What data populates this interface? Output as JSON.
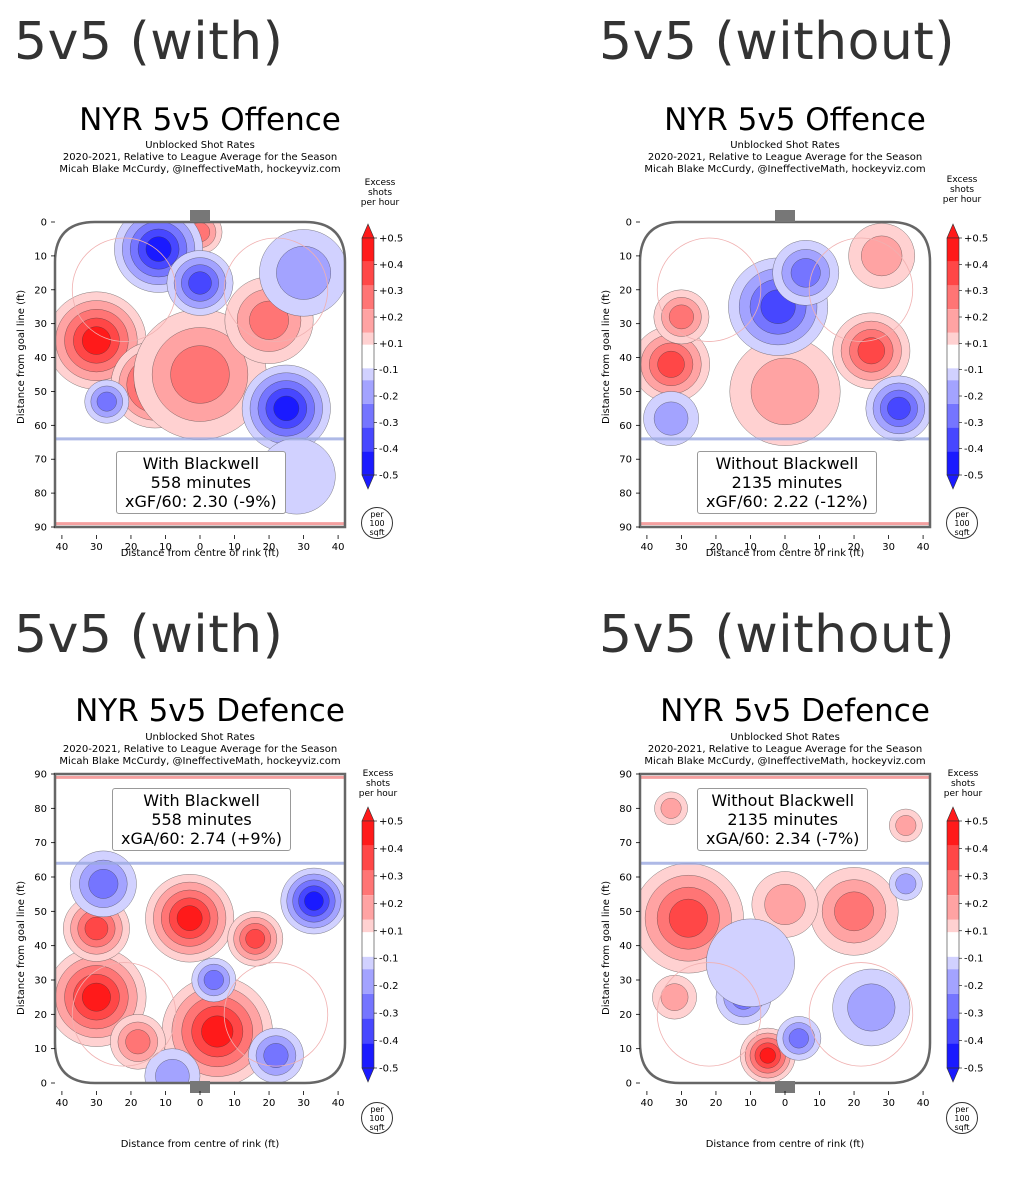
{
  "panels": [
    {
      "heading": "5v5 (with)",
      "title": "NYR 5v5 Offence",
      "subtitle_lines": [
        "Unblocked Shot Rates",
        "2020-2021, Relative to League Average for the Season",
        "Micah Blake McCurdy, @IneffectiveMath, hockeyviz.com"
      ],
      "info": {
        "line1": "With Blackwell",
        "line2": "558 minutes",
        "line3": "xGF/60: 2.30 (-9%)"
      }
    },
    {
      "heading": "5v5 (without)",
      "title": "NYR 5v5 Offence",
      "subtitle_lines": [
        "Unblocked Shot Rates",
        "2020-2021, Relative to League Average for the Season",
        "Micah Blake McCurdy, @IneffectiveMath, hockeyviz.com"
      ],
      "info": {
        "line1": "Without Blackwell",
        "line2": "2135 minutes",
        "line3": "xGF/60: 2.22 (-12%)"
      }
    },
    {
      "heading": "5v5 (with)",
      "title": "NYR 5v5 Defence",
      "subtitle_lines": [
        "Unblocked Shot Rates",
        "2020-2021, Relative to League Average for the Season",
        "Micah Blake McCurdy, @IneffectiveMath, hockeyviz.com"
      ],
      "info": {
        "line1": "With Blackwell",
        "line2": "558 minutes",
        "line3": "xGA/60: 2.74 (+9%)"
      }
    },
    {
      "heading": "5v5 (without)",
      "title": "NYR 5v5 Defence",
      "subtitle_lines": [
        "Unblocked Shot Rates",
        "2020-2021, Relative to League Average for the Season",
        "Micah Blake McCurdy, @IneffectiveMath, hockeyviz.com"
      ],
      "info": {
        "line1": "Without Blackwell",
        "line2": "2135 minutes",
        "line3": "xGA/60: 2.34 (-7%)"
      }
    }
  ],
  "axis": {
    "ylabel": "Distance from goal line (ft)",
    "xlabel": "Distance from centre of rink (ft)",
    "y_ticks_offence": [
      "0",
      "10",
      "20",
      "30",
      "40",
      "50",
      "60",
      "70",
      "80",
      "90"
    ],
    "y_ticks_defence": [
      "90",
      "80",
      "70",
      "60",
      "50",
      "40",
      "30",
      "20",
      "10",
      "0"
    ],
    "x_ticks": [
      "40",
      "30",
      "20",
      "10",
      "0",
      "10",
      "20",
      "30",
      "40"
    ]
  },
  "colorbar": {
    "title_lines": [
      "Excess",
      "shots",
      "per hour"
    ],
    "ticks": [
      "+0.5",
      "+0.4",
      "+0.3",
      "+0.2",
      "+0.1",
      "-0.1",
      "-0.2",
      "-0.3",
      "-0.4",
      "-0.5"
    ],
    "unit_lines": [
      "per",
      "100",
      "sqft"
    ],
    "colors": [
      "#ff1a1a",
      "#ff4747",
      "#ff7575",
      "#ffa3a3",
      "#ffd1d1",
      "#ffffff",
      "#d1d1ff",
      "#a3a3ff",
      "#7575ff",
      "#4747ff",
      "#1a1aff"
    ]
  },
  "chart_data": [
    {
      "type": "heatmap",
      "title": "NYR 5v5 Offence",
      "xlabel": "Distance from centre of rink (ft)",
      "ylabel": "Distance from goal line (ft)",
      "xlim": [
        -42,
        42
      ],
      "ylim": [
        0,
        90
      ],
      "vrange": [
        -0.5,
        0.5
      ],
      "hotspots": [
        {
          "x": -30,
          "y": 35,
          "r": 9,
          "v": 0.5
        },
        {
          "x": -13,
          "y": 48,
          "r": 8,
          "v": 0.45
        },
        {
          "x": 0,
          "y": 45,
          "r": 12,
          "v": 0.25
        },
        {
          "x": 20,
          "y": 29,
          "r": 8,
          "v": 0.3
        },
        {
          "x": 0,
          "y": 3,
          "r": 4,
          "v": 0.3
        },
        {
          "x": -12,
          "y": 8,
          "r": 8,
          "v": -0.45
        },
        {
          "x": 0,
          "y": 18,
          "r": 6,
          "v": -0.4
        },
        {
          "x": 25,
          "y": 55,
          "r": 8,
          "v": -0.5
        },
        {
          "x": -27,
          "y": 53,
          "r": 4,
          "v": -0.25
        },
        {
          "x": 30,
          "y": 15,
          "r": 8,
          "v": -0.15
        },
        {
          "x": 28,
          "y": 75,
          "r": 7,
          "v": -0.1
        }
      ]
    },
    {
      "type": "heatmap",
      "title": "NYR 5v5 Offence",
      "xlabel": "Distance from centre of rink (ft)",
      "ylabel": "Distance from goal line (ft)",
      "xlim": [
        -42,
        42
      ],
      "ylim": [
        0,
        90
      ],
      "vrange": [
        -0.5,
        0.5
      ],
      "hotspots": [
        {
          "x": -33,
          "y": 42,
          "r": 7,
          "v": 0.4
        },
        {
          "x": -30,
          "y": 28,
          "r": 5,
          "v": 0.3
        },
        {
          "x": 25,
          "y": 38,
          "r": 7,
          "v": 0.35
        },
        {
          "x": 0,
          "y": 50,
          "r": 10,
          "v": 0.2
        },
        {
          "x": 28,
          "y": 10,
          "r": 6,
          "v": 0.2
        },
        {
          "x": -2,
          "y": 25,
          "r": 9,
          "v": -0.4
        },
        {
          "x": 6,
          "y": 15,
          "r": 6,
          "v": -0.3
        },
        {
          "x": 33,
          "y": 55,
          "r": 6,
          "v": -0.35
        },
        {
          "x": -33,
          "y": 58,
          "r": 5,
          "v": -0.15
        }
      ]
    },
    {
      "type": "heatmap",
      "title": "NYR 5v5 Defence",
      "xlabel": "Distance from centre of rink (ft)",
      "ylabel": "Distance from goal line (ft)",
      "xlim": [
        -42,
        42
      ],
      "ylim": [
        0,
        90
      ],
      "vrange": [
        -0.5,
        0.5
      ],
      "hotspots": [
        {
          "x": -30,
          "y": 25,
          "r": 9,
          "v": 0.5
        },
        {
          "x": -30,
          "y": 45,
          "r": 6,
          "v": 0.4
        },
        {
          "x": -3,
          "y": 48,
          "r": 8,
          "v": 0.5
        },
        {
          "x": 5,
          "y": 15,
          "r": 10,
          "v": 0.5
        },
        {
          "x": 16,
          "y": 42,
          "r": 5,
          "v": 0.35
        },
        {
          "x": -18,
          "y": 12,
          "r": 5,
          "v": 0.3
        },
        {
          "x": 33,
          "y": 53,
          "r": 6,
          "v": -0.45
        },
        {
          "x": -28,
          "y": 58,
          "r": 6,
          "v": -0.25
        },
        {
          "x": 4,
          "y": 30,
          "r": 4,
          "v": -0.3
        },
        {
          "x": 22,
          "y": 8,
          "r": 5,
          "v": -0.25
        },
        {
          "x": -8,
          "y": 2,
          "r": 5,
          "v": -0.15
        }
      ]
    },
    {
      "type": "heatmap",
      "title": "NYR 5v5 Defence",
      "xlabel": "Distance from centre of rink (ft)",
      "ylabel": "Distance from goal line (ft)",
      "xlim": [
        -42,
        42
      ],
      "ylim": [
        0,
        90
      ],
      "vrange": [
        -0.5,
        0.5
      ],
      "hotspots": [
        {
          "x": -28,
          "y": 48,
          "r": 10,
          "v": 0.4
        },
        {
          "x": 20,
          "y": 50,
          "r": 8,
          "v": 0.3
        },
        {
          "x": 0,
          "y": 52,
          "r": 6,
          "v": 0.2
        },
        {
          "x": -5,
          "y": 8,
          "r": 5,
          "v": 0.45
        },
        {
          "x": -32,
          "y": 25,
          "r": 4,
          "v": 0.15
        },
        {
          "x": -12,
          "y": 25,
          "r": 5,
          "v": -0.3
        },
        {
          "x": 4,
          "y": 13,
          "r": 4,
          "v": -0.3
        },
        {
          "x": 25,
          "y": 22,
          "r": 7,
          "v": -0.2
        },
        {
          "x": -10,
          "y": 35,
          "r": 8,
          "v": -0.1
        },
        {
          "x": 35,
          "y": 58,
          "r": 3,
          "v": -0.15
        },
        {
          "x": 35,
          "y": 75,
          "r": 3,
          "v": 0.2
        },
        {
          "x": -33,
          "y": 80,
          "r": 3,
          "v": 0.15
        }
      ]
    }
  ]
}
